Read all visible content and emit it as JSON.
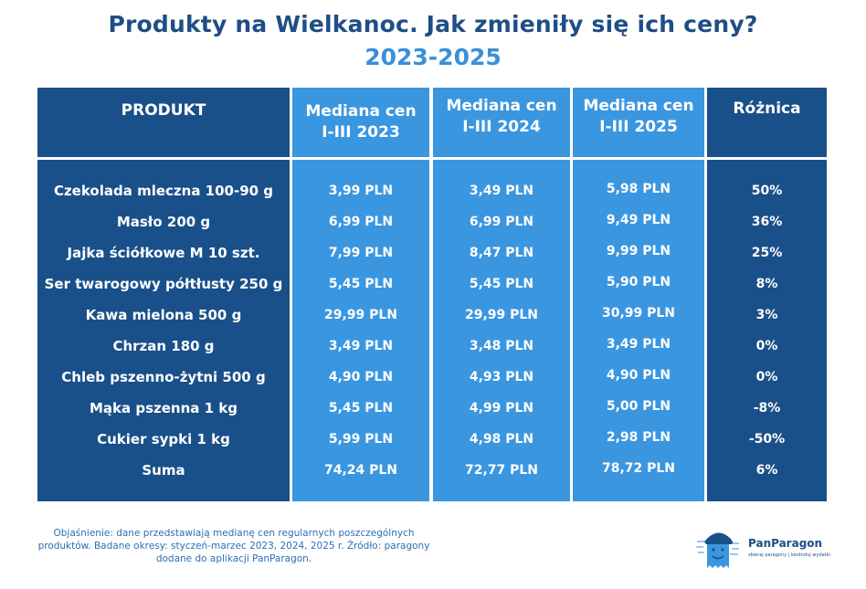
{
  "title": "Produkty na Wielkanoc. Jak zmieniły się ich ceny?",
  "subtitle": "2023-2025",
  "headers": {
    "product": "PRODUKT",
    "y2023": "Mediana cen\nI-III 2023",
    "y2024": "Mediana cen\nI-III 2024",
    "y2025": "Mediana cen\nI-III 2025",
    "diff": "Różnica"
  },
  "rows": [
    {
      "product": "Czekolada mleczna 100-90 g",
      "y2023": "3,99 PLN",
      "y2024": "3,49 PLN",
      "y2025": "5,98 PLN",
      "diff": "50%"
    },
    {
      "product": "Masło 200 g",
      "y2023": "6,99 PLN",
      "y2024": "6,99 PLN",
      "y2025": "9,49 PLN",
      "diff": "36%"
    },
    {
      "product": "Jajka ściółkowe M 10 szt.",
      "y2023": "7,99 PLN",
      "y2024": "8,47 PLN",
      "y2025": "9,99 PLN",
      "diff": "25%"
    },
    {
      "product": "Ser twarogowy półtłusty 250 g",
      "y2023": "5,45 PLN",
      "y2024": "5,45 PLN",
      "y2025": "5,90 PLN",
      "diff": "8%"
    },
    {
      "product": "Kawa mielona 500 g",
      "y2023": "29,99 PLN",
      "y2024": "29,99 PLN",
      "y2025": "30,99 PLN",
      "diff": "3%"
    },
    {
      "product": "Chrzan 180 g",
      "y2023": "3,49 PLN",
      "y2024": "3,48 PLN",
      "y2025": "3,49 PLN",
      "diff": "0%"
    },
    {
      "product": "Chleb pszenno-żytni 500 g",
      "y2023": "4,90 PLN",
      "y2024": "4,93 PLN",
      "y2025": "4,90 PLN",
      "diff": "0%"
    },
    {
      "product": "Mąka pszenna 1 kg",
      "y2023": "5,45 PLN",
      "y2024": "4,99 PLN",
      "y2025": "5,00 PLN",
      "diff": "-8%"
    },
    {
      "product": "Cukier sypki 1 kg",
      "y2023": "5,99 PLN",
      "y2024": "4,98 PLN",
      "y2025": "2,98 PLN",
      "diff": "-50%"
    },
    {
      "product": "Suma",
      "y2023": "74,24 PLN",
      "y2024": "72,77 PLN",
      "y2025": "78,72 PLN",
      "diff": "6%"
    }
  ],
  "footnote": "Objaśnienie: dane przedstawiają medianę cen regularnych poszczególnych produktów. Badane okresy: styczeń-marzec 2023, 2024, 2025 r. Źródło: paragony dodane do aplikacji PanParagon.",
  "logo": {
    "name": "PanParagon",
    "tagline": "zbieraj paragony | kontroluj wydatki",
    "icon": "paragon-man-icon"
  },
  "colors": {
    "dark_column": "#1a5089",
    "light_column": "#3b96e0",
    "title": "#1f4e86",
    "subtitle": "#3a8fd9"
  }
}
